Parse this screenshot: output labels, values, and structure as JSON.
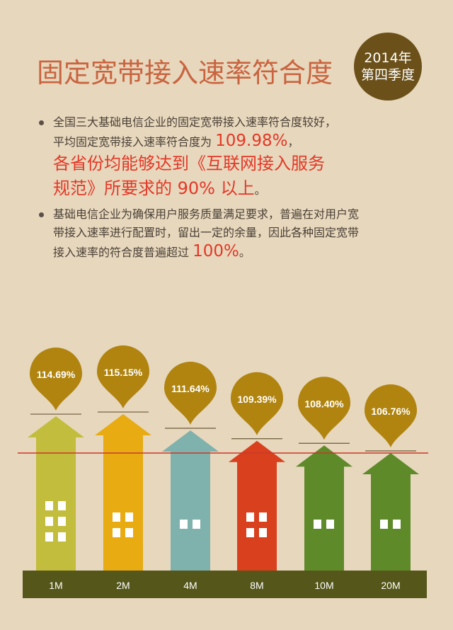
{
  "title": "固定宽带接入速率符合度",
  "badge": {
    "line1": "2014年",
    "line2": "第四季度"
  },
  "bullets": [
    {
      "text1": "全国三大基础电信企业的固定宽带接入速率符合度较好，",
      "text2": "平均固定宽带接入速率符合度为",
      "highlight": "109.98%",
      "tail": "，",
      "red1": "各省份均能够达到《互联网接入服务",
      "red2": "规范》所要求的 90% 以上",
      "red_tail": "。"
    },
    {
      "text1": "基础电信企业为确保用户服务质量满足要求，普遍在对用户宽",
      "text2": "带接入速率进行配置时，留出一定的余量，因此各种固定宽带",
      "text3": "接入速率的符合度普遍超过",
      "highlight": "100%",
      "tail": "。"
    }
  ],
  "chart_data": {
    "type": "bar",
    "categories": [
      "1M",
      "2M",
      "4M",
      "8M",
      "10M",
      "20M"
    ],
    "values": [
      114.69,
      115.15,
      111.64,
      109.39,
      108.4,
      106.76
    ],
    "labels": [
      "114.69%",
      "115.15%",
      "111.64%",
      "109.39%",
      "108.40%",
      "106.76%"
    ],
    "reference_line": 106.76,
    "colors": [
      "#c2bd3c",
      "#e8ab12",
      "#7fb1ad",
      "#d9401e",
      "#5e8a2a",
      "#5e8a2a"
    ],
    "marker_color": "#b0840f",
    "reference_color": "#c9392a",
    "base_color": "#55561a"
  }
}
